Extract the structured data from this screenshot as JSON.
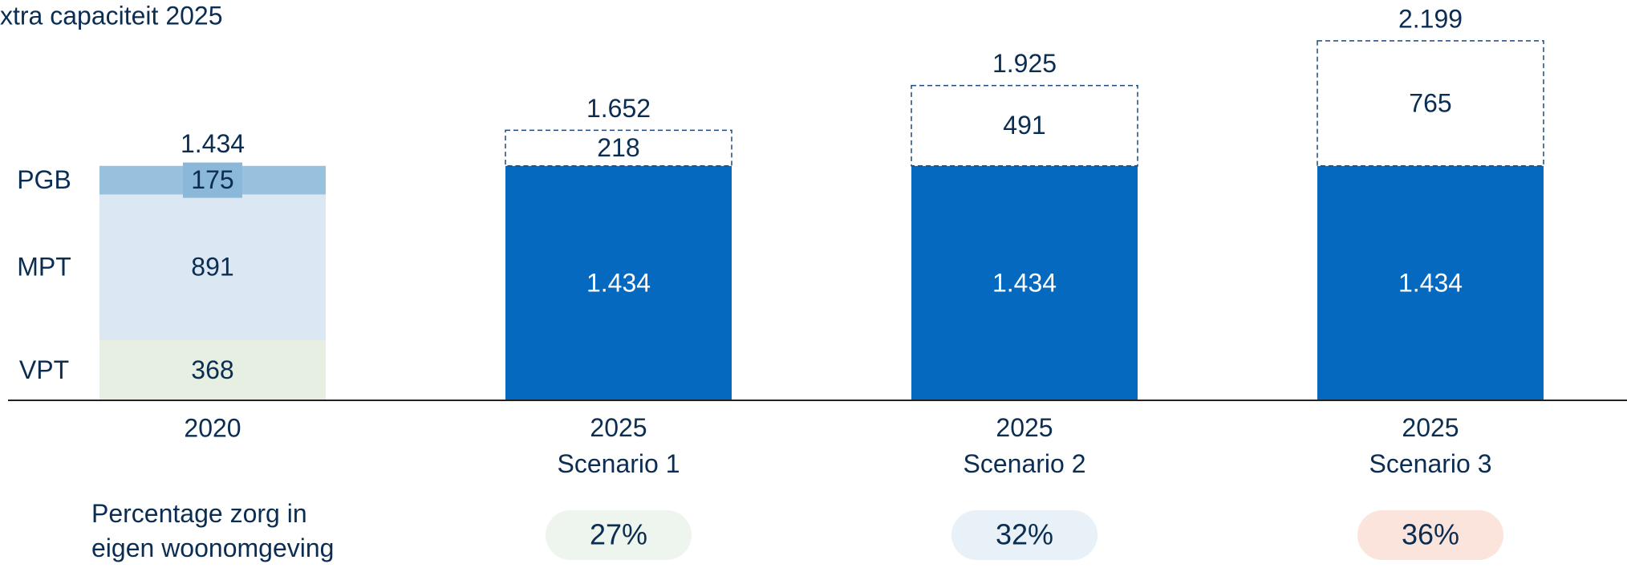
{
  "chart_data": {
    "type": "stacked_bar",
    "annotation": "xtra capaciteit 2025",
    "categories": [
      "2020",
      "2025\nScenario 1",
      "2025\nScenario 2",
      "2025\nScenario 3"
    ],
    "series": [
      {
        "name": "VPT",
        "color": "#e6efe1",
        "values": [
          368,
          null,
          null,
          null
        ]
      },
      {
        "name": "MPT",
        "color": "#dbe8f3",
        "values": [
          891,
          null,
          null,
          null
        ]
      },
      {
        "name": "PGB",
        "color": "#97c1dd",
        "values": [
          175,
          null,
          null,
          null
        ]
      },
      {
        "color": "#0569c0",
        "values": [
          null,
          1434,
          1434,
          1434
        ],
        "value_labels": [
          null,
          "1.434",
          "1.434",
          "1.434"
        ]
      },
      {
        "color": "#ffffff",
        "style": "dashed",
        "values": [
          null,
          218,
          491,
          765
        ]
      }
    ],
    "totals": {
      "values": [
        1434,
        1652,
        1925,
        2199
      ],
      "value_labels": [
        "1.434",
        "1.652",
        "1.925",
        "2.199"
      ]
    },
    "percentages": {
      "label": "Percentage zorg in\neigen woonomgeving",
      "values": [
        null,
        27,
        32,
        36
      ],
      "value_labels": [
        null,
        "27%",
        "32%",
        "36%"
      ],
      "colors": [
        null,
        "#eef4ee",
        "#e8f1f7",
        "#fbe4dc"
      ]
    }
  }
}
